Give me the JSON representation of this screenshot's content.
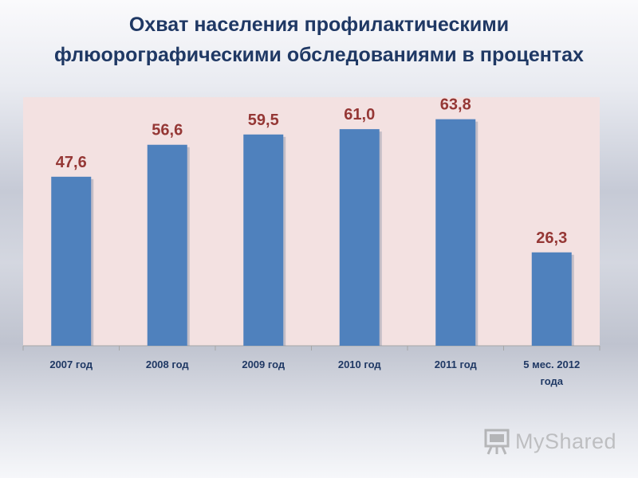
{
  "title_lines": [
    "Охват населения профилактическими",
    "флюорографическими обследованиями в процентах"
  ],
  "watermark": {
    "text": "MyShared",
    "icon": "presentation-board-icon"
  },
  "colors": {
    "title": "#1f3864",
    "plot_background": "#f3e1e1",
    "bar": "#4f81bd",
    "value_label": "#953735",
    "tick_label": "#1f3864"
  },
  "chart_data": {
    "type": "bar",
    "title": "Охват населения профилактическими флюорографическими обследованиями в процентах",
    "categories": [
      "2007 год",
      "2008 год",
      "2009 год",
      "2010 год",
      "2011 год",
      "5 мес. 2012 года"
    ],
    "category_lines": [
      [
        "2007 год"
      ],
      [
        "2008 год"
      ],
      [
        "2009 год"
      ],
      [
        "2010 год"
      ],
      [
        "2011 год"
      ],
      [
        "5 мес. 2012",
        "года"
      ]
    ],
    "values": [
      47.6,
      56.6,
      59.5,
      61.0,
      63.8,
      26.3
    ],
    "value_labels": [
      "47,6",
      "56,6",
      "59,5",
      "61,0",
      "63,8",
      "26,3"
    ],
    "xlabel": "",
    "ylabel": "",
    "ylim": [
      0,
      70
    ],
    "grid": false,
    "legend": "none",
    "data_labels": true
  }
}
